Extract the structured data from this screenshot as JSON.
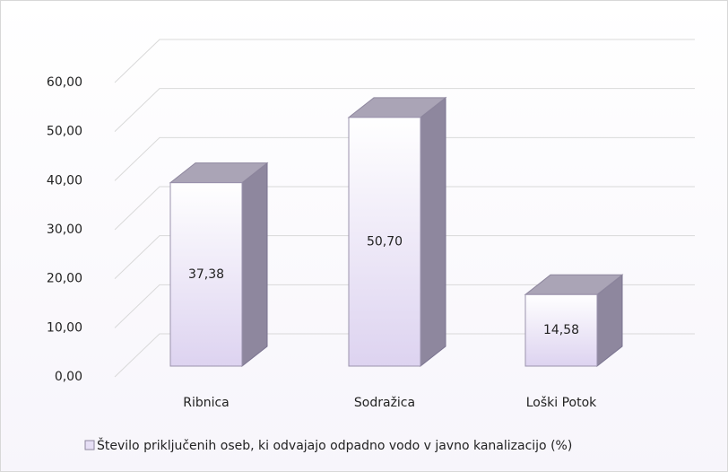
{
  "chart_data": {
    "type": "bar",
    "categories": [
      "Ribnica",
      "Sodražica",
      "Loški Potok"
    ],
    "series": [
      {
        "name": "Število priključenih oseb, ki odvajajo odpadno vodo v javno kanalizacijo (%)",
        "color": "#e6def5",
        "values": [
          37.38,
          50.7,
          14.58
        ],
        "value_labels": [
          "37,38",
          "50,70",
          "14,58"
        ]
      }
    ],
    "ylim": [
      0,
      60
    ],
    "yticks": [
      {
        "value": 0,
        "label": "0,00"
      },
      {
        "value": 10,
        "label": "10,00"
      },
      {
        "value": 20,
        "label": "20,00"
      },
      {
        "value": 30,
        "label": "30,00"
      },
      {
        "value": 40,
        "label": "40,00"
      },
      {
        "value": 50,
        "label": "50,00"
      },
      {
        "value": 60,
        "label": "60,00"
      }
    ],
    "grid": true,
    "legend": "bottom"
  }
}
